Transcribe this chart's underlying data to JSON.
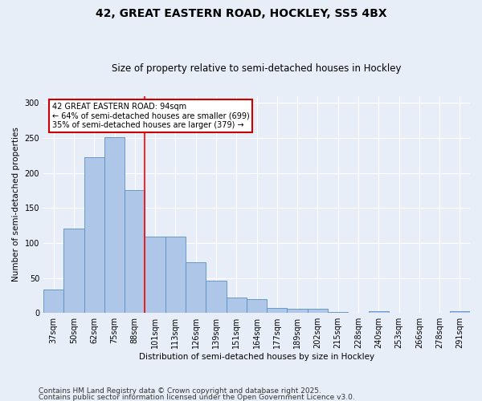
{
  "title1": "42, GREAT EASTERN ROAD, HOCKLEY, SS5 4BX",
  "title2": "Size of property relative to semi-detached houses in Hockley",
  "xlabel": "Distribution of semi-detached houses by size in Hockley",
  "ylabel": "Number of semi-detached properties",
  "categories": [
    "37sqm",
    "50sqm",
    "62sqm",
    "75sqm",
    "88sqm",
    "101sqm",
    "113sqm",
    "126sqm",
    "139sqm",
    "151sqm",
    "164sqm",
    "177sqm",
    "189sqm",
    "202sqm",
    "215sqm",
    "228sqm",
    "240sqm",
    "253sqm",
    "266sqm",
    "278sqm",
    "291sqm"
  ],
  "values": [
    33,
    120,
    222,
    251,
    175,
    109,
    109,
    72,
    46,
    22,
    20,
    7,
    6,
    6,
    1,
    0,
    3,
    0,
    0,
    0,
    2
  ],
  "bar_color": "#aec6e8",
  "bar_edge_color": "#5a8fc0",
  "red_line_index": 4,
  "annotation_text": "42 GREAT EASTERN ROAD: 94sqm\n← 64% of semi-detached houses are smaller (699)\n35% of semi-detached houses are larger (379) →",
  "annotation_box_color": "#ffffff",
  "annotation_box_edge_color": "#cc0000",
  "footnote1": "Contains HM Land Registry data © Crown copyright and database right 2025.",
  "footnote2": "Contains public sector information licensed under the Open Government Licence v3.0.",
  "ylim": [
    0,
    310
  ],
  "yticks": [
    0,
    50,
    100,
    150,
    200,
    250,
    300
  ],
  "background_color": "#e8eef8",
  "grid_color": "#ffffff",
  "title1_fontsize": 10,
  "title2_fontsize": 8.5,
  "axis_fontsize": 7.5,
  "tick_fontsize": 7,
  "footnote_fontsize": 6.5
}
